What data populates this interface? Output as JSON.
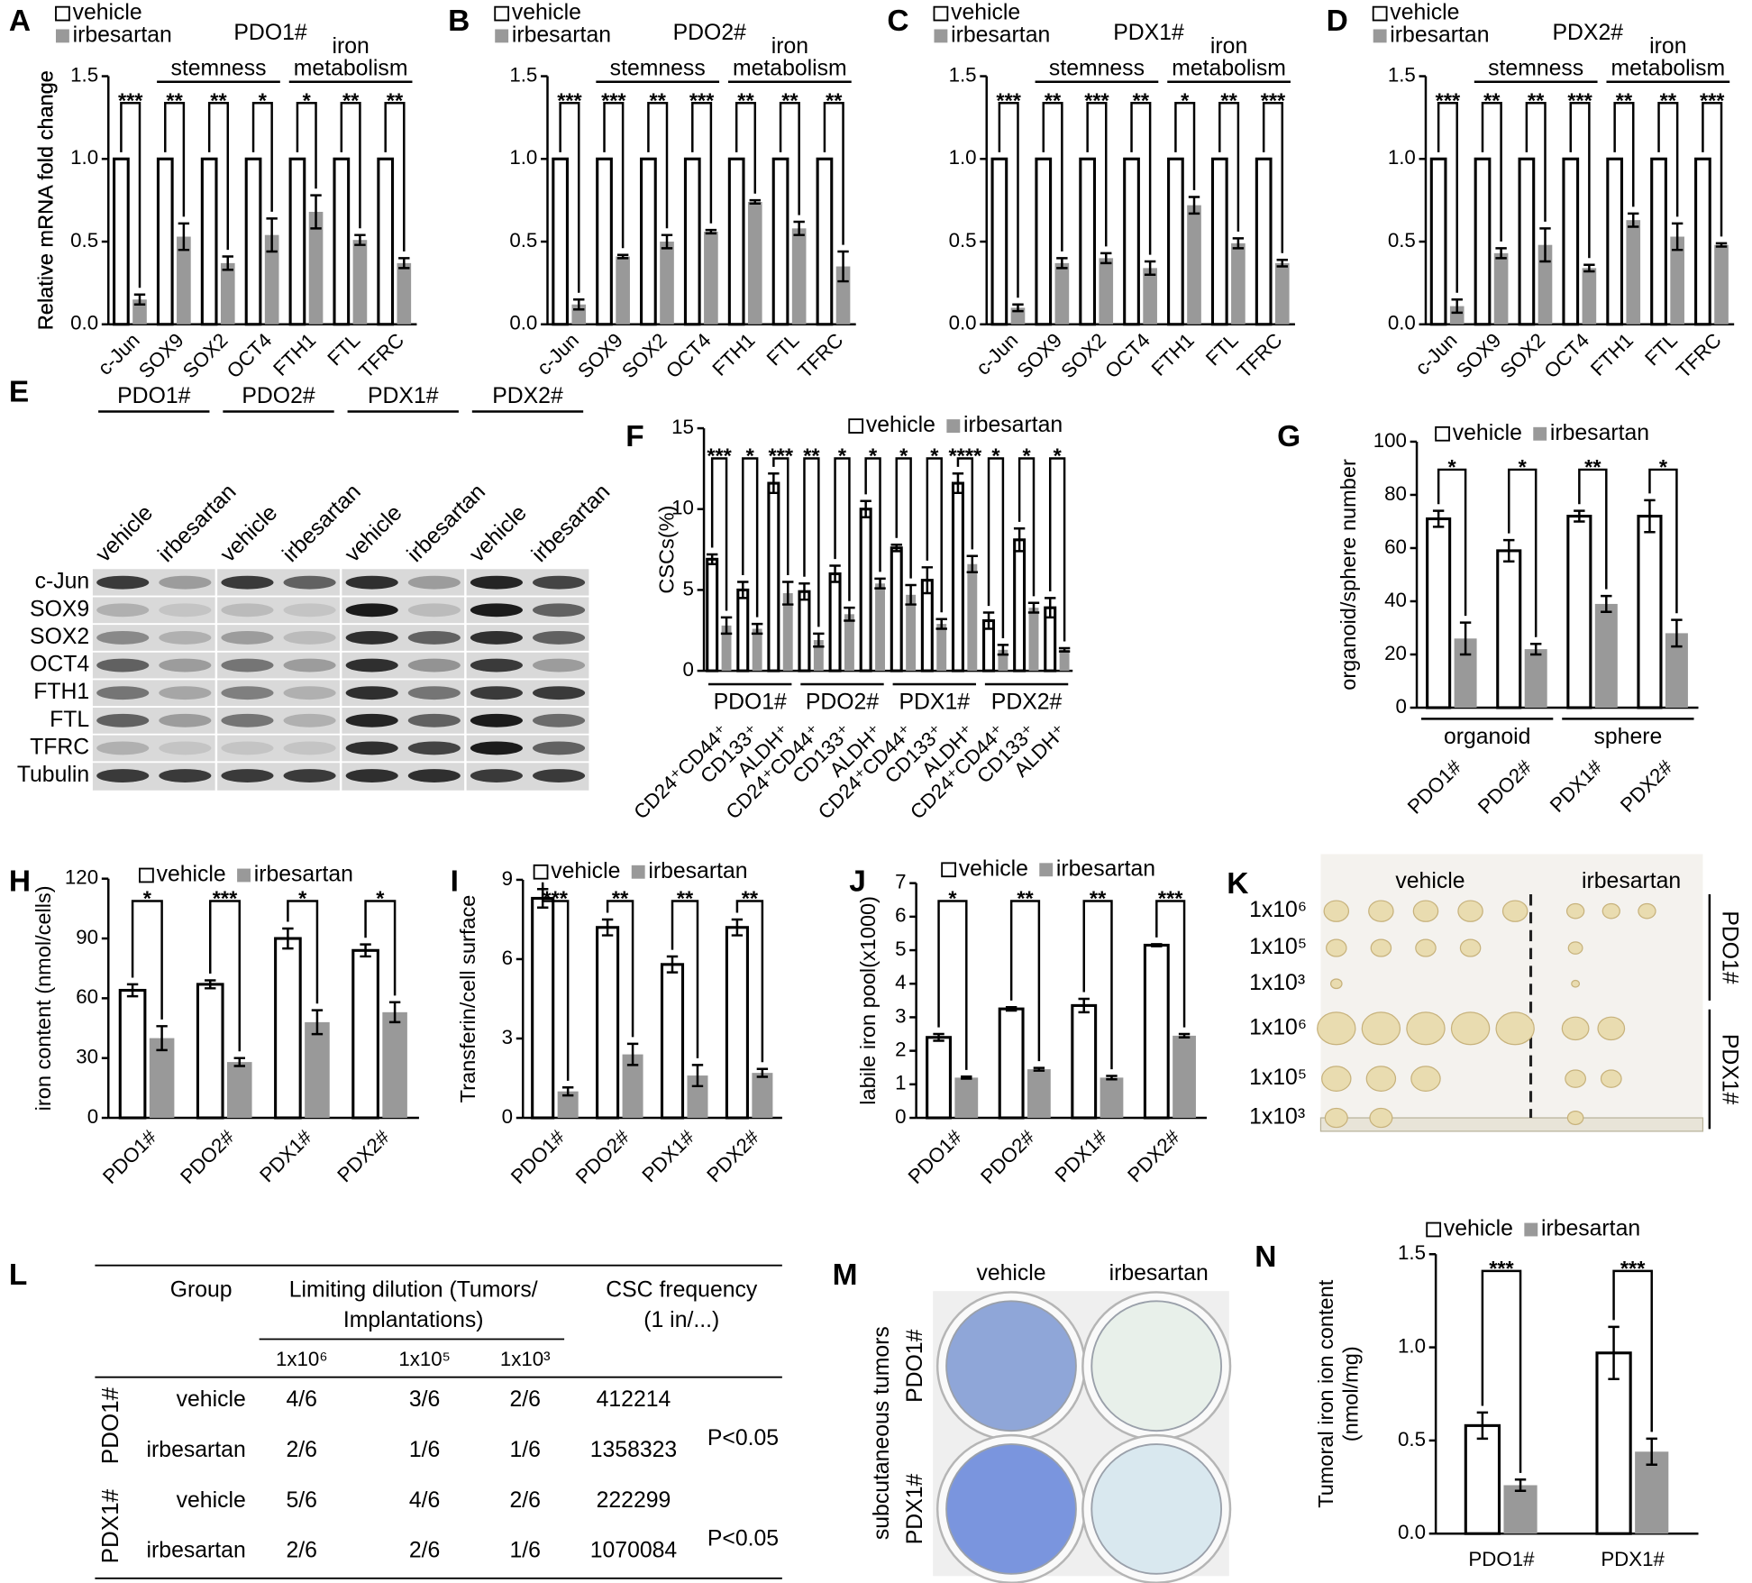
{
  "chart_data": [
    {
      "type": "bar",
      "panel": "A",
      "title": "PDO1#",
      "ylabel": "Relative mRNA fold change",
      "categories": [
        "c-Jun",
        "SOX9",
        "SOX2",
        "OCT4",
        "FTH1",
        "FTL",
        "TFRC"
      ],
      "groups": [
        {
          "label": "stemness",
          "categories": [
            "SOX9",
            "SOX2",
            "OCT4"
          ]
        },
        {
          "label": [
            "iron",
            "metabolism"
          ],
          "categories": [
            "FTH1",
            "FTL",
            "TFRC"
          ]
        }
      ],
      "series": [
        {
          "name": "vehicle",
          "color": "#ffffff",
          "values": [
            1,
            1,
            1,
            1,
            1,
            1,
            1
          ],
          "errors": [
            0,
            0,
            0,
            0,
            0,
            0,
            0
          ]
        },
        {
          "name": "irbesartan",
          "color": "#999999",
          "values": [
            0.15,
            0.53,
            0.37,
            0.54,
            0.68,
            0.51,
            0.37
          ],
          "errors": [
            0.03,
            0.08,
            0.04,
            0.1,
            0.1,
            0.03,
            0.03
          ]
        }
      ],
      "significance": [
        "***",
        "**",
        "**",
        "*",
        "*",
        "**",
        "**"
      ],
      "ylim": [
        0,
        1.5
      ],
      "yticks": [
        {
          "value": 0,
          "label": "0.0"
        },
        0.5,
        {
          "value": 1,
          "label": "1.0"
        },
        1.5
      ]
    },
    {
      "type": "bar",
      "panel": "B",
      "title": "PDO2#",
      "ylabel": "Relative mRNA fold change",
      "categories": [
        "c-Jun",
        "SOX9",
        "SOX2",
        "OCT4",
        "FTH1",
        "FTL",
        "TFRC"
      ],
      "groups": [
        {
          "label": "stemness",
          "categories": [
            "SOX9",
            "SOX2",
            "OCT4"
          ]
        },
        {
          "label": [
            "iron",
            "metabolism"
          ],
          "categories": [
            "FTH1",
            "FTL",
            "TFRC"
          ]
        }
      ],
      "series": [
        {
          "name": "vehicle",
          "color": "#ffffff",
          "values": [
            1,
            1,
            1,
            1,
            1,
            1,
            1
          ],
          "errors": [
            0,
            0,
            0,
            0,
            0,
            0,
            0
          ]
        },
        {
          "name": "irbesartan",
          "color": "#999999",
          "values": [
            0.12,
            0.41,
            0.5,
            0.56,
            0.74,
            0.58,
            0.35
          ],
          "errors": [
            0.03,
            0.01,
            0.04,
            0.01,
            0.01,
            0.04,
            0.09
          ]
        }
      ],
      "significance": [
        "***",
        "***",
        "**",
        "***",
        "**",
        "**",
        "**"
      ],
      "ylim": [
        0,
        1.5
      ],
      "yticks": [
        {
          "value": 0,
          "label": "0.0"
        },
        0.5,
        {
          "value": 1,
          "label": "1.0"
        },
        1.5
      ]
    },
    {
      "type": "bar",
      "panel": "C",
      "title": "PDX1#",
      "ylabel": "Relative mRNA fold change",
      "categories": [
        "c-Jun",
        "SOX9",
        "SOX2",
        "OCT4",
        "FTH1",
        "FTL",
        "TFRC"
      ],
      "groups": [
        {
          "label": "stemness",
          "categories": [
            "SOX9",
            "SOX2",
            "OCT4"
          ]
        },
        {
          "label": [
            "iron",
            "metabolism"
          ],
          "categories": [
            "FTH1",
            "FTL",
            "TFRC"
          ]
        }
      ],
      "series": [
        {
          "name": "vehicle",
          "color": "#ffffff",
          "values": [
            1,
            1,
            1,
            1,
            1,
            1,
            1
          ],
          "errors": [
            0,
            0,
            0,
            0,
            0,
            0,
            0
          ]
        },
        {
          "name": "irbesartan",
          "color": "#999999",
          "values": [
            0.1,
            0.37,
            0.4,
            0.34,
            0.72,
            0.49,
            0.37
          ],
          "errors": [
            0.02,
            0.03,
            0.03,
            0.04,
            0.05,
            0.03,
            0.02
          ]
        }
      ],
      "significance": [
        "***",
        "**",
        "***",
        "**",
        "*",
        "**",
        "***"
      ],
      "ylim": [
        0,
        1.5
      ],
      "yticks": [
        {
          "value": 0,
          "label": "0.0"
        },
        0.5,
        {
          "value": 1,
          "label": "1.0"
        },
        1.5
      ]
    },
    {
      "type": "bar",
      "panel": "D",
      "title": "PDX2#",
      "ylabel": "Relative mRNA fold change",
      "categories": [
        "c-Jun",
        "SOX9",
        "SOX2",
        "OCT4",
        "FTH1",
        "FTL",
        "TFRC"
      ],
      "groups": [
        {
          "label": "stemness",
          "categories": [
            "SOX9",
            "SOX2",
            "OCT4"
          ]
        },
        {
          "label": [
            "iron",
            "metabolism"
          ],
          "categories": [
            "FTH1",
            "FTL",
            "TFRC"
          ]
        }
      ],
      "series": [
        {
          "name": "vehicle",
          "color": "#ffffff",
          "values": [
            1,
            1,
            1,
            1,
            1,
            1,
            1
          ],
          "errors": [
            0,
            0,
            0,
            0,
            0,
            0,
            0
          ]
        },
        {
          "name": "irbesartan",
          "color": "#999999",
          "values": [
            0.11,
            0.43,
            0.48,
            0.34,
            0.63,
            0.53,
            0.48
          ],
          "errors": [
            0.04,
            0.03,
            0.1,
            0.02,
            0.04,
            0.08,
            0.01
          ]
        }
      ],
      "significance": [
        "***",
        "**",
        "**",
        "***",
        "**",
        "**",
        "***"
      ],
      "ylim": [
        0,
        1.5
      ],
      "yticks": [
        {
          "value": 0,
          "label": "0.0"
        },
        0.5,
        {
          "value": 1,
          "label": "1.0"
        },
        1.5
      ]
    },
    {
      "type": "bar",
      "panel": "F",
      "ylabel": "CSCs(%)",
      "categories": [
        "CD24⁺CD44⁺",
        "CD133⁺",
        "ALDH⁺",
        "CD24⁺CD44⁺",
        "CD133⁺",
        "ALDH⁺",
        "CD24⁺CD44⁺",
        "CD133⁺",
        "ALDH⁺",
        "CD24⁺CD44⁺",
        "CD133⁺",
        "ALDH⁺"
      ],
      "groups": [
        {
          "label": "PDO1#",
          "span": 3
        },
        {
          "label": "PDO2#",
          "span": 3
        },
        {
          "label": "PDX1#",
          "span": 3
        },
        {
          "label": "PDX2#",
          "span": 3
        }
      ],
      "series": [
        {
          "name": "vehicle",
          "color": "#ffffff",
          "values": [
            6.9,
            5.0,
            11.6,
            4.9,
            6.0,
            10.0,
            7.6,
            5.6,
            11.6,
            3.1,
            8.1,
            3.9
          ],
          "errors": [
            0.3,
            0.5,
            0.6,
            0.5,
            0.5,
            0.5,
            0.2,
            0.8,
            0.6,
            0.5,
            0.7,
            0.6
          ]
        },
        {
          "name": "irbesartan",
          "color": "#999999",
          "values": [
            2.8,
            2.6,
            4.8,
            1.9,
            3.5,
            5.4,
            4.7,
            2.9,
            6.6,
            1.3,
            3.9,
            1.3
          ],
          "errors": [
            0.5,
            0.3,
            0.7,
            0.4,
            0.4,
            0.3,
            0.6,
            0.3,
            0.5,
            0.3,
            0.3,
            0.1
          ]
        }
      ],
      "significance": [
        "***",
        "*",
        "***",
        "**",
        "*",
        "*",
        "*",
        "*",
        "****",
        "*",
        "*",
        "*"
      ],
      "ylim": [
        0,
        15
      ],
      "yticks": [
        0,
        5,
        10,
        15
      ]
    },
    {
      "type": "bar",
      "panel": "G",
      "ylabel": "organoid/sphere number",
      "categories": [
        "PDO1#",
        "PDO2#",
        "PDX1#",
        "PDX2#"
      ],
      "groups": [
        {
          "label": "organoid",
          "span": 2
        },
        {
          "label": "sphere",
          "span": 2
        }
      ],
      "series": [
        {
          "name": "vehicle",
          "color": "#ffffff",
          "values": [
            71,
            59,
            72,
            72
          ],
          "errors": [
            3,
            4,
            2,
            6
          ]
        },
        {
          "name": "irbesartan",
          "color": "#999999",
          "values": [
            26,
            22,
            39,
            28
          ],
          "errors": [
            6,
            2,
            3,
            5
          ]
        }
      ],
      "significance": [
        "*",
        "*",
        "**",
        "*"
      ],
      "ylim": [
        0,
        100
      ],
      "yticks": [
        0,
        20,
        40,
        60,
        80,
        100
      ]
    },
    {
      "type": "bar",
      "panel": "H",
      "ylabel": "iron content (nmol/cells)",
      "categories": [
        "PDO1#",
        "PDO2#",
        "PDX1#",
        "PDX2#"
      ],
      "series": [
        {
          "name": "vehicle",
          "color": "#ffffff",
          "values": [
            64,
            67,
            90,
            84
          ],
          "errors": [
            3,
            2,
            5,
            3
          ]
        },
        {
          "name": "irbesartan",
          "color": "#999999",
          "values": [
            40,
            28,
            48,
            53
          ],
          "errors": [
            6,
            2,
            6,
            5
          ]
        }
      ],
      "significance": [
        "*",
        "***",
        "*",
        "*"
      ],
      "ylim": [
        0,
        120
      ],
      "yticks": [
        0,
        30,
        60,
        90,
        120
      ]
    },
    {
      "type": "bar",
      "panel": "I",
      "ylabel": "Transferin/cell surface",
      "categories": [
        "PDO1#",
        "PDO2#",
        "PDX1#",
        "PDX2#"
      ],
      "series": [
        {
          "name": "vehicle",
          "color": "#ffffff",
          "values": [
            8.3,
            7.2,
            5.8,
            7.2
          ],
          "errors": [
            0.35,
            0.3,
            0.3,
            0.3
          ]
        },
        {
          "name": "irbesartan",
          "color": "#999999",
          "values": [
            1.0,
            2.4,
            1.6,
            1.7
          ],
          "errors": [
            0.15,
            0.4,
            0.4,
            0.15
          ]
        }
      ],
      "significance": [
        "***",
        "**",
        "**",
        "**"
      ],
      "ylim": [
        0,
        9
      ],
      "yticks": [
        0,
        3,
        6,
        9
      ]
    },
    {
      "type": "bar",
      "panel": "J",
      "ylabel": "labile iron pool(x1000)",
      "categories": [
        "PDO1#",
        "PDO2#",
        "PDX1#",
        "PDX2#"
      ],
      "series": [
        {
          "name": "vehicle",
          "color": "#ffffff",
          "values": [
            2.4,
            3.25,
            3.35,
            5.15
          ],
          "errors": [
            0.1,
            0.05,
            0.2,
            0.03
          ]
        },
        {
          "name": "irbesartan",
          "color": "#999999",
          "values": [
            1.2,
            1.45,
            1.2,
            2.45
          ],
          "errors": [
            0.03,
            0.04,
            0.05,
            0.05
          ]
        }
      ],
      "significance": [
        "*",
        "**",
        "**",
        "***"
      ],
      "ylim": [
        0,
        7
      ],
      "yticks": [
        0,
        1,
        2,
        3,
        4,
        5,
        6,
        7
      ]
    },
    {
      "type": "bar",
      "panel": "N",
      "ylabel": [
        "Tumoral iron ion content",
        "(nmol/mg)"
      ],
      "categories": [
        "PDO1#",
        "PDX1#"
      ],
      "series": [
        {
          "name": "vehicle",
          "color": "#ffffff",
          "values": [
            0.58,
            0.97
          ],
          "errors": [
            0.07,
            0.14
          ]
        },
        {
          "name": "irbesartan",
          "color": "#999999",
          "values": [
            0.26,
            0.44
          ],
          "errors": [
            0.03,
            0.07
          ]
        }
      ],
      "significance": [
        "***",
        "***"
      ],
      "ylim": [
        0,
        1.5
      ],
      "yticks": [
        {
          "value": 0,
          "label": "0.0"
        },
        0.5,
        {
          "value": 1,
          "label": "1.0"
        },
        1.5
      ]
    }
  ],
  "panel_e": {
    "panel": "E",
    "groups": [
      "PDO1#",
      "PDO2#",
      "PDX1#",
      "PDX2#"
    ],
    "lanes": [
      "vehicle",
      "irbesartan",
      "vehicle",
      "irbesartan",
      "vehicle",
      "irbesartan",
      "vehicle",
      "irbesartan"
    ],
    "proteins": [
      "c-Jun",
      "SOX9",
      "SOX2",
      "OCT4",
      "FTH1",
      "FTL",
      "TFRC",
      "Tubulin"
    ]
  },
  "panel_k": {
    "panel": "K",
    "columns": [
      "vehicle",
      "irbesartan"
    ],
    "doses": [
      "1x10⁶",
      "1x10⁵",
      "1x10³",
      "1x10⁶",
      "1x10⁵",
      "1x10³"
    ],
    "rows": [
      "PDO1#",
      "PDX1#"
    ]
  },
  "table_l": {
    "panel": "L",
    "header": {
      "group": "Group",
      "dilution": [
        "Limiting dilution (Tumors/",
        "Implantations)"
      ],
      "frequency": [
        "CSC frequency",
        "(1 in/...)"
      ],
      "doses": [
        "1x10⁶",
        "1x10⁵",
        "1x10³"
      ]
    },
    "models": [
      {
        "name": "PDO1#",
        "p_value": "P<0.05",
        "rows": [
          {
            "treatment": "vehicle",
            "counts": [
              "4/6",
              "3/6",
              "2/6"
            ],
            "frequency": 412214
          },
          {
            "treatment": "irbesartan",
            "counts": [
              "2/6",
              "1/6",
              "1/6"
            ],
            "frequency": 1358323
          }
        ]
      },
      {
        "name": "PDX1#",
        "p_value": "P<0.05",
        "rows": [
          {
            "treatment": "vehicle",
            "counts": [
              "5/6",
              "4/6",
              "2/6"
            ],
            "frequency": 222299
          },
          {
            "treatment": "irbesartan",
            "counts": [
              "2/6",
              "2/6",
              "1/6"
            ],
            "frequency": 1070084
          }
        ]
      }
    ]
  },
  "panel_m": {
    "panel": "M",
    "columns": [
      "vehicle",
      "irbesartan"
    ],
    "side_label": "subcutaneous tumors",
    "rows": [
      "PDO1#",
      "PDX1#"
    ]
  }
}
